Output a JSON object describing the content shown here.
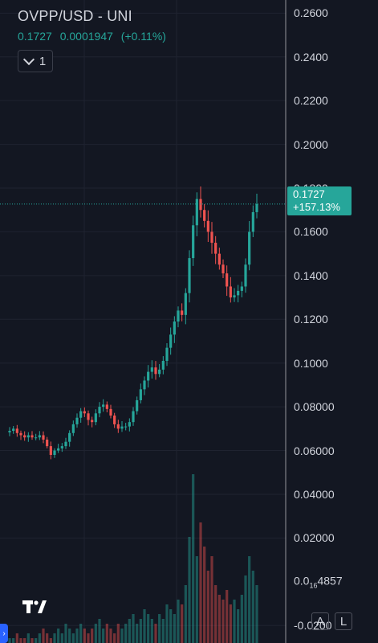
{
  "header": {
    "symbol": "OVPP/USD - UNI",
    "last_price": "0.1727",
    "change": "0.0001947",
    "change_pct": "(+0.11%)",
    "interval_label": "1"
  },
  "price_tag": {
    "price": "0.1727",
    "change_pct": "+157.13%"
  },
  "controls": {
    "auto_label": "A",
    "log_label": "L"
  },
  "colors": {
    "up": "#26a69a",
    "down": "#ef5350",
    "background": "#131722",
    "grid": "#1f2330"
  },
  "chart_data": {
    "type": "candlestick",
    "y_axis_ticks": [
      "0.2600",
      "0.2400",
      "0.2200",
      "0.2000",
      "0.1800",
      "0.1600",
      "0.1400",
      "0.1200",
      "0.1000",
      "0.08000",
      "0.06000",
      "0.04000",
      "0.02000",
      "-0.0200"
    ],
    "y_tick_values": [
      0.26,
      0.24,
      0.22,
      0.2,
      0.18,
      0.16,
      0.14,
      0.12,
      0.1,
      0.08,
      0.06,
      0.04,
      0.02,
      -0.02
    ],
    "subscript_tick": {
      "value": 4.857e-07,
      "prefix": "0.0",
      "subscript": "16",
      "suffix": "4857"
    },
    "ylim": [
      -0.028,
      0.266
    ],
    "last_price": 0.1727,
    "close_series": [
      0.069,
      0.07,
      0.068,
      0.067,
      0.066,
      0.067,
      0.066,
      0.066,
      0.067,
      0.065,
      0.062,
      0.058,
      0.06,
      0.061,
      0.062,
      0.064,
      0.068,
      0.072,
      0.075,
      0.078,
      0.077,
      0.074,
      0.073,
      0.077,
      0.08,
      0.081,
      0.079,
      0.076,
      0.072,
      0.07,
      0.071,
      0.071,
      0.073,
      0.078,
      0.083,
      0.088,
      0.092,
      0.096,
      0.098,
      0.095,
      0.097,
      0.101,
      0.107,
      0.113,
      0.119,
      0.124,
      0.122,
      0.132,
      0.148,
      0.163,
      0.175,
      0.17,
      0.165,
      0.16,
      0.155,
      0.15,
      0.145,
      0.141,
      0.135,
      0.13,
      0.131,
      0.133,
      0.135,
      0.145,
      0.16,
      0.169,
      0.1727
    ],
    "volume_series": [
      1,
      1,
      2,
      1,
      1,
      2,
      1,
      1,
      2,
      3,
      2,
      1,
      2,
      3,
      2,
      4,
      3,
      2,
      3,
      4,
      3,
      2,
      3,
      4,
      5,
      3,
      4,
      3,
      2,
      4,
      3,
      4,
      5,
      6,
      4,
      5,
      7,
      6,
      5,
      4,
      6,
      5,
      8,
      7,
      6,
      9,
      8,
      12,
      22,
      35,
      18,
      25,
      20,
      15,
      18,
      12,
      10,
      9,
      11,
      8,
      9,
      7,
      10,
      14,
      18,
      15,
      12
    ]
  }
}
